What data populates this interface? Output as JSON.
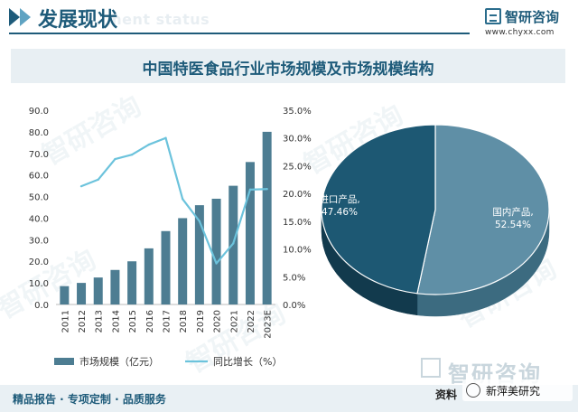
{
  "header": {
    "title": "发展现状",
    "subtitle": "ment status"
  },
  "brand": {
    "name": "智研咨询",
    "url": "www.chyxx.com"
  },
  "banner": {
    "title": "中国特医食品行业市场规模及市场规模结构"
  },
  "watermark": {
    "text": "智研咨询"
  },
  "footer": {
    "text": "精品报告 · 专项定制 · 品质服务",
    "source": "资料",
    "wechat": "新萍美研究"
  },
  "colors": {
    "primary": "#1e5b7a",
    "bar": "#4d7d92",
    "line": "#6cc3dc",
    "pie_import": "#1d5873",
    "pie_domestic": "#5f8fa6"
  },
  "chart_data": [
    {
      "type": "bar",
      "categories": [
        "2011",
        "2012",
        "2013",
        "2014",
        "2015",
        "2016",
        "2017",
        "2018",
        "2019",
        "2020",
        "2021",
        "2022",
        "2023E"
      ],
      "series": [
        {
          "name": "市场规模（亿元）",
          "type": "bar",
          "axis": "left",
          "values": [
            8.5,
            10,
            12.5,
            16,
            20,
            26,
            34,
            40,
            46,
            49,
            55,
            66,
            80
          ]
        },
        {
          "name": "同比增长（%）",
          "type": "line",
          "axis": "right",
          "values": [
            null,
            21.3,
            22.5,
            26.2,
            27.0,
            28.8,
            30.0,
            19.0,
            15.0,
            7.4,
            11.0,
            20.7,
            20.8
          ]
        }
      ],
      "yleft_ticks": [
        "0.0",
        "10.0",
        "20.0",
        "30.0",
        "40.0",
        "50.0",
        "60.0",
        "70.0",
        "80.0",
        "90.0"
      ],
      "yleft_lim": [
        0,
        90
      ],
      "yright_ticks": [
        "0.0%",
        "5.0%",
        "10.0%",
        "15.0%",
        "20.0%",
        "25.0%",
        "30.0%",
        "35.0%"
      ],
      "yright_lim": [
        0,
        35
      ],
      "legend": "bottom"
    },
    {
      "type": "pie",
      "labels": [
        "国内产品",
        "进口产品"
      ],
      "values": [
        52.54,
        47.46
      ],
      "value_labels": [
        "52.54%",
        "47.46%"
      ],
      "style": "3d"
    }
  ]
}
